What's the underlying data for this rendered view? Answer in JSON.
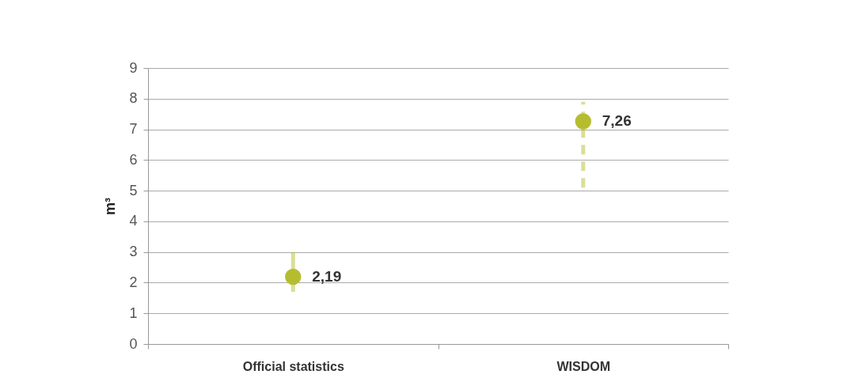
{
  "chart_data": {
    "type": "scatter",
    "ylabel": "m³",
    "categories": [
      "Official statistics",
      "WISDOM"
    ],
    "series": [
      {
        "color": "#b5bd2f",
        "values": [
          2.19,
          null
        ],
        "errors": [
          [
            1.7,
            3.0
          ],
          null
        ],
        "value_labels": [
          "2,19",
          null
        ],
        "line_style": "solid"
      },
      {
        "color": "#b5bd2f",
        "values": [
          null,
          7.26
        ],
        "errors": [
          null,
          [
            5.1,
            7.9
          ]
        ],
        "value_labels": [
          null,
          "7,26"
        ],
        "line_style": "dashed"
      }
    ],
    "ylim": [
      0,
      9
    ],
    "yticks": [
      0,
      1,
      2,
      3,
      4,
      5,
      6,
      7,
      8,
      9
    ],
    "grid": "y",
    "legend": false,
    "marker": "circle"
  }
}
